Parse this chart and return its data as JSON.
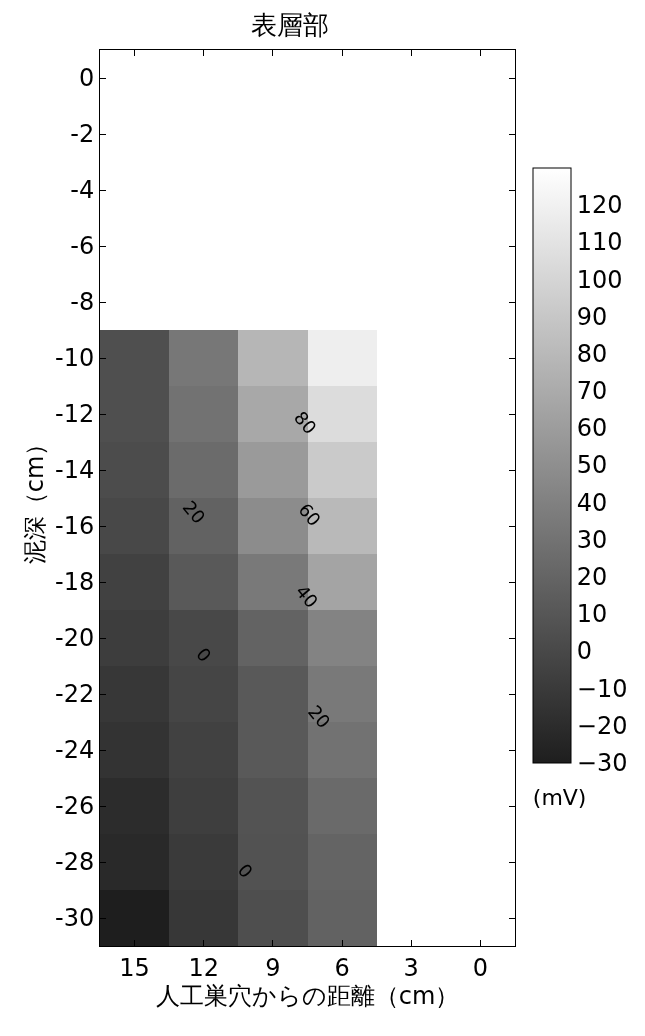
{
  "chart_data": {
    "type": "heatmap",
    "title": "表層部",
    "xlabel": "人工巣穴からの距離（cm）",
    "ylabel": "泥深（cm）",
    "clabel": "(mV)",
    "categories": [
      "15",
      "12",
      "9",
      "6",
      "3",
      "0"
    ],
    "y_categories": [
      "0",
      "-2",
      "-4",
      "-6",
      "-8",
      "-10",
      "-12",
      "-14",
      "-16",
      "-18",
      "-20",
      "-22",
      "-24",
      "-26",
      "-28",
      "-30"
    ],
    "cells": [
      [
        null,
        null,
        null,
        null,
        null,
        null
      ],
      [
        null,
        null,
        null,
        null,
        null,
        null
      ],
      [
        null,
        null,
        null,
        null,
        null,
        null
      ],
      [
        null,
        null,
        null,
        null,
        null,
        null
      ],
      [
        null,
        null,
        null,
        null,
        null,
        null
      ],
      [
        5,
        33,
        78,
        118,
        null,
        null
      ],
      [
        5,
        30,
        68,
        105,
        null,
        null
      ],
      [
        3,
        25,
        58,
        92,
        null,
        null
      ],
      [
        0,
        18,
        48,
        80,
        null,
        null
      ],
      [
        -5,
        12,
        35,
        65,
        null,
        null
      ],
      [
        -8,
        0,
        19,
        42,
        null,
        null
      ],
      [
        -12,
        -2,
        12,
        35,
        null,
        null
      ],
      [
        -15,
        -5,
        12,
        30,
        null,
        null
      ],
      [
        -20,
        -7,
        8,
        24,
        null,
        null
      ],
      [
        -22,
        -10,
        7,
        20,
        null,
        null
      ],
      [
        -30,
        -12,
        4,
        18,
        null,
        null
      ]
    ],
    "clim": [
      -30,
      130
    ],
    "cticks": [
      -30,
      -20,
      -10,
      0,
      10,
      20,
      30,
      40,
      50,
      60,
      70,
      80,
      90,
      100,
      110,
      120
    ],
    "annotations": [
      "80",
      "60",
      "40",
      "20",
      "0",
      "20",
      "0"
    ]
  }
}
